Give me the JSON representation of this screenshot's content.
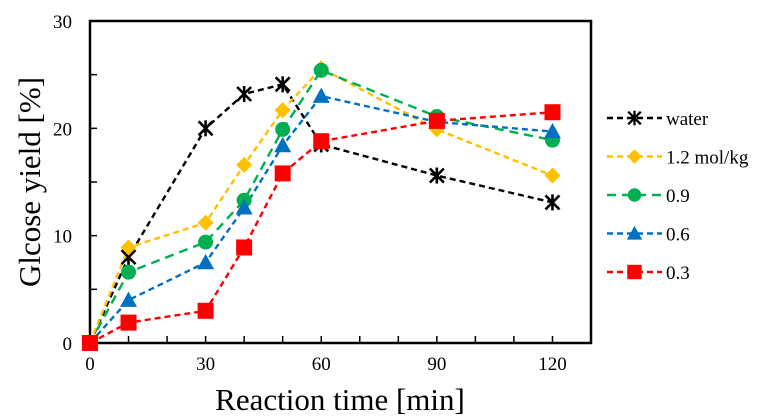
{
  "chart_data": {
    "type": "line",
    "title": "",
    "xlabel": "Reaction time [min]",
    "ylabel": "Glcose yield [%]",
    "xlim": [
      0,
      130
    ],
    "ylim": [
      0,
      30
    ],
    "xticks": [
      0,
      30,
      60,
      90,
      120
    ],
    "yticks": [
      0,
      10,
      20,
      30
    ],
    "x_minor_step": 10,
    "y_minor_step": 5,
    "grid": false,
    "legend_position": "right",
    "x": [
      0,
      10,
      30,
      40,
      50,
      60,
      90,
      120
    ],
    "series": [
      {
        "name": "water",
        "color": "#000000",
        "marker": "asterisk",
        "values": [
          0,
          8.0,
          20.0,
          23.2,
          24.1,
          18.5,
          15.6,
          13.1
        ]
      },
      {
        "name": "1.2 mol/kg",
        "color": "#FFC000",
        "marker": "diamond",
        "values": [
          0,
          8.9,
          11.2,
          16.6,
          21.7,
          25.6,
          19.9,
          15.6
        ]
      },
      {
        "name": "0.9",
        "color": "#00B050",
        "marker": "circle",
        "values": [
          0,
          6.6,
          9.4,
          13.3,
          19.9,
          25.4,
          21.1,
          18.9
        ]
      },
      {
        "name": "0.6",
        "color": "#0070C0",
        "marker": "triangle",
        "values": [
          0,
          4.0,
          7.5,
          12.6,
          18.4,
          23.0,
          20.6,
          19.7
        ]
      },
      {
        "name": "0.3",
        "color": "#FF0000",
        "marker": "square",
        "values": [
          0,
          1.9,
          3.0,
          8.9,
          15.8,
          18.8,
          20.7,
          21.5
        ]
      }
    ]
  }
}
